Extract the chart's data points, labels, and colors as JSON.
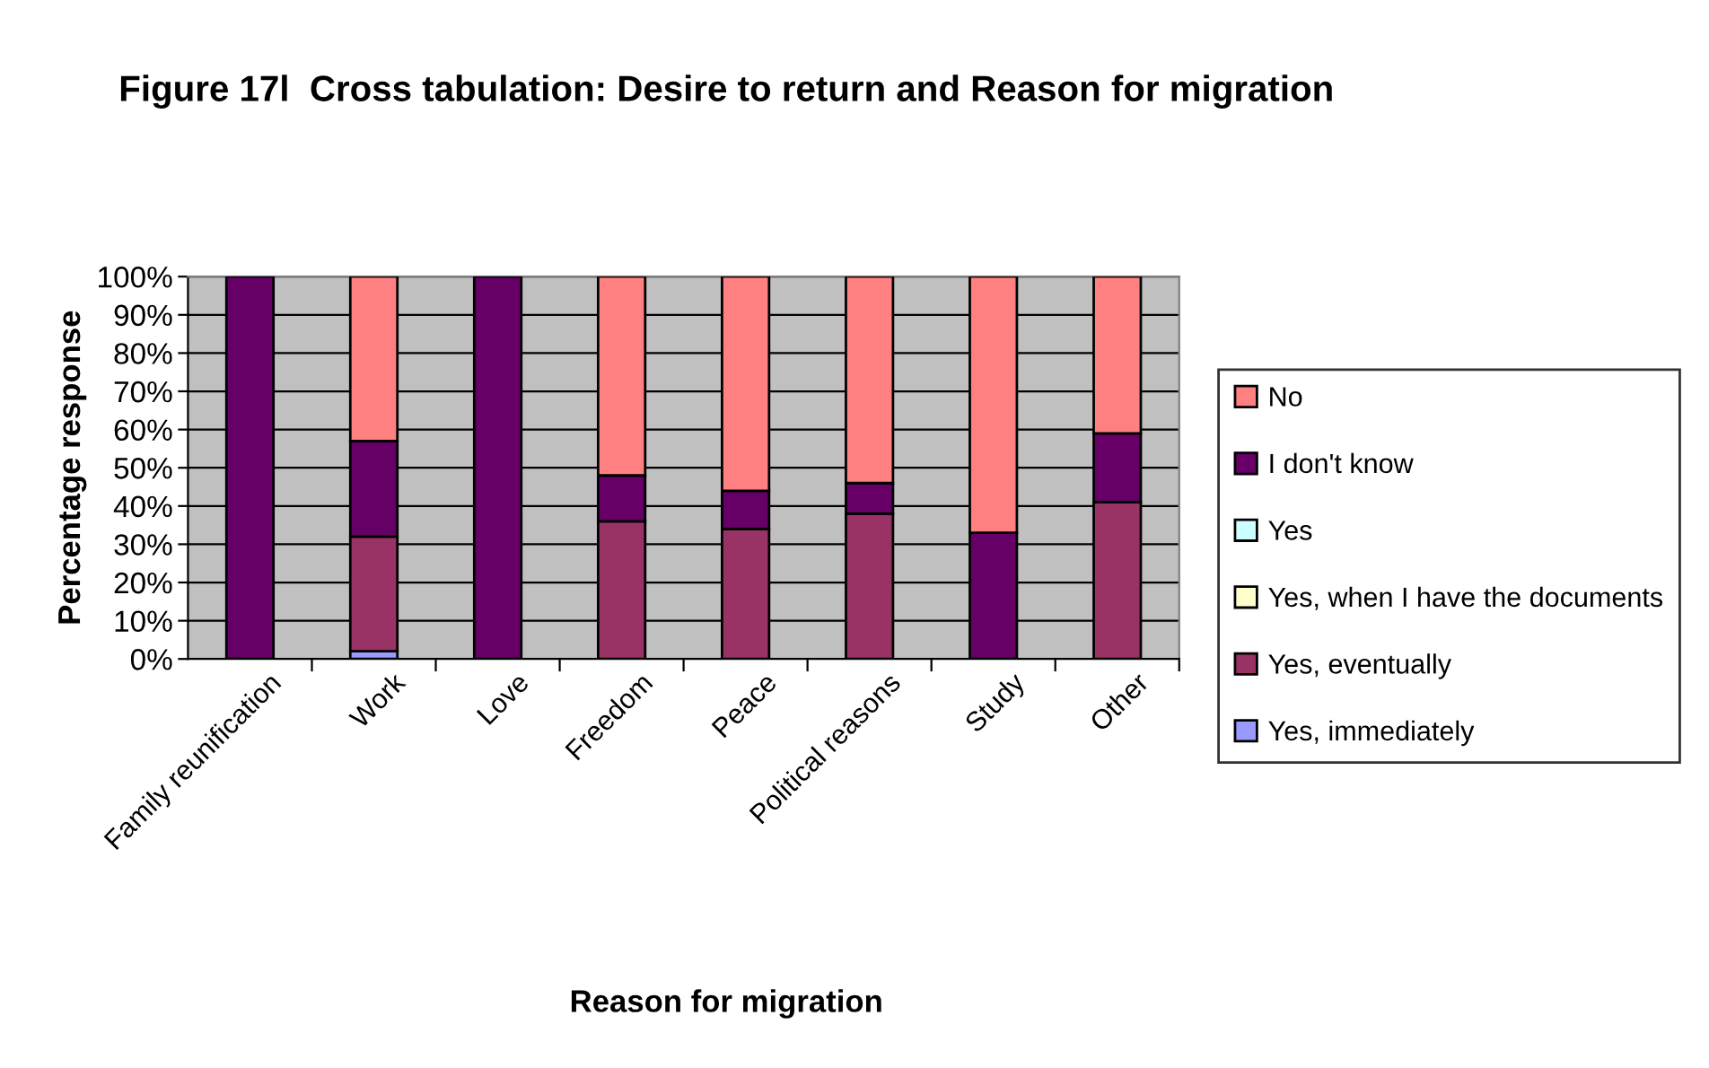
{
  "chart_data": {
    "type": "bar",
    "stacked": true,
    "title": "Figure 17l  Cross tabulation: Desire to return and Reason for migration",
    "xlabel": "Reason for migration",
    "ylabel": "Percentage response",
    "categories": [
      "Family reunification",
      "Work",
      "Love",
      "Freedom",
      "Peace",
      "Political reasons",
      "Study",
      "Other"
    ],
    "series": [
      {
        "name": "Yes, immediately",
        "color": "#9999ff",
        "values": [
          0,
          2,
          0,
          0,
          0,
          0,
          0,
          0
        ]
      },
      {
        "name": "Yes, eventually",
        "color": "#993366",
        "values": [
          0,
          30,
          0,
          36,
          34,
          38,
          0,
          41
        ]
      },
      {
        "name": "Yes, when I have the documents",
        "color": "#ffffcc",
        "values": [
          0,
          0,
          0,
          0,
          0,
          0,
          0,
          0
        ]
      },
      {
        "name": "Yes",
        "color": "#ccffff",
        "values": [
          0,
          0,
          0,
          0,
          0,
          0,
          0,
          0
        ]
      },
      {
        "name": "I don't know",
        "color": "#660066",
        "values": [
          100,
          25,
          100,
          12,
          10,
          8,
          33,
          18
        ]
      },
      {
        "name": "No",
        "color": "#ff8080",
        "values": [
          0,
          43,
          0,
          52,
          56,
          54,
          67,
          41
        ]
      }
    ],
    "ylim": [
      0,
      100
    ],
    "yticks": [
      {
        "value": 0,
        "label": "0%"
      },
      {
        "value": 10,
        "label": "10%"
      },
      {
        "value": 20,
        "label": "20%"
      },
      {
        "value": 30,
        "label": "30%"
      },
      {
        "value": 40,
        "label": "40%"
      },
      {
        "value": 50,
        "label": "50%"
      },
      {
        "value": 60,
        "label": "60%"
      },
      {
        "value": 70,
        "label": "70%"
      },
      {
        "value": 80,
        "label": "80%"
      },
      {
        "value": 90,
        "label": "90%"
      },
      {
        "value": 100,
        "label": "100%"
      }
    ],
    "grid": "y",
    "legend": "right"
  }
}
